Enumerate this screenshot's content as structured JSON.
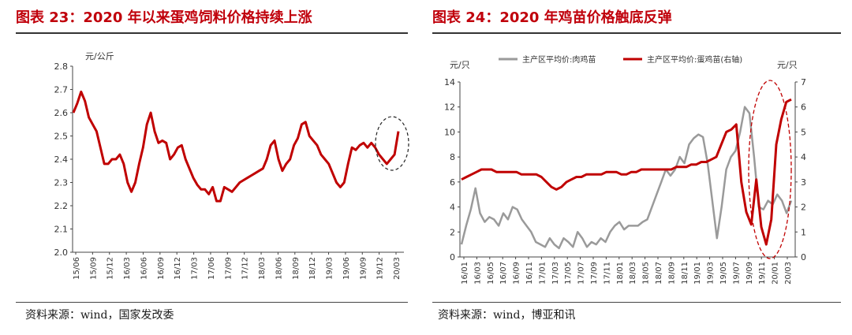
{
  "left": {
    "title": "图表 23：2020 年以来蛋鸡饲料价格持续上涨",
    "source": "资料来源：wind，国家发改委",
    "chart_data": {
      "type": "line",
      "ylabel": "元/公斤",
      "ylim": [
        2.0,
        2.8
      ],
      "yticks": [
        "2.0",
        "2.1",
        "2.2",
        "2.3",
        "2.4",
        "2.5",
        "2.6",
        "2.7",
        "2.8"
      ],
      "xticks": [
        "15/06",
        "15/09",
        "15/12",
        "16/03",
        "16/06",
        "16/09",
        "16/12",
        "17/03",
        "17/06",
        "17/09",
        "17/12",
        "18/03",
        "18/06",
        "18/09",
        "18/12",
        "19/03",
        "19/06",
        "19/09",
        "19/12",
        "20/03"
      ],
      "color": "#c00000",
      "series": [
        {
          "values": [
            2.6,
            2.64,
            2.69,
            2.65,
            2.58,
            2.55,
            2.52,
            2.45,
            2.38,
            2.38,
            2.4,
            2.4,
            2.42,
            2.38,
            2.3,
            2.26,
            2.3,
            2.38,
            2.45,
            2.55,
            2.6,
            2.52,
            2.47,
            2.48,
            2.47,
            2.4,
            2.42,
            2.45,
            2.46,
            2.4,
            2.36,
            2.32,
            2.29,
            2.27,
            2.27,
            2.25,
            2.28,
            2.22,
            2.22,
            2.28,
            2.27,
            2.26,
            2.28,
            2.3,
            2.31,
            2.32,
            2.33,
            2.34,
            2.35,
            2.36,
            2.4,
            2.46,
            2.48,
            2.4,
            2.35,
            2.38,
            2.4,
            2.46,
            2.49,
            2.55,
            2.56,
            2.5,
            2.48,
            2.46,
            2.42,
            2.4,
            2.38,
            2.34,
            2.3,
            2.28,
            2.3,
            2.38,
            2.45,
            2.44,
            2.46,
            2.47,
            2.45,
            2.47,
            2.45,
            2.42,
            2.4,
            2.38,
            2.4,
            2.42,
            2.52
          ]
        }
      ],
      "annotation": "dashed-ellipse-around-latest"
    }
  },
  "right": {
    "title": "图表 24：2020 年鸡苗价格触底反弹",
    "source": "资料来源：wind，博亚和讯",
    "chart_data": {
      "type": "line",
      "ylabel_left": "元/只",
      "ylabel_right": "元/只",
      "ylim_left": [
        0,
        14
      ],
      "ylim_right": [
        0,
        7
      ],
      "yticks_left": [
        "0",
        "2",
        "4",
        "6",
        "8",
        "10",
        "12",
        "14"
      ],
      "yticks_right": [
        "0",
        "1",
        "2",
        "3",
        "4",
        "5",
        "6",
        "7"
      ],
      "xticks": [
        "16/01",
        "16/03",
        "16/05",
        "16/07",
        "16/09",
        "16/11",
        "17/01",
        "17/03",
        "17/05",
        "17/07",
        "17/09",
        "17/11",
        "18/01",
        "18/03",
        "18/05",
        "18/07",
        "18/09",
        "18/11",
        "19/01",
        "19/03",
        "19/05",
        "19/07",
        "19/09",
        "19/11",
        "20/01",
        "20/03"
      ],
      "legend_position": "top",
      "series": [
        {
          "name": "主产区平均价:肉鸡苗",
          "axis": "left",
          "color": "#9a9a9a",
          "values": [
            1.0,
            2.5,
            3.8,
            5.5,
            3.5,
            2.8,
            3.2,
            3.0,
            2.5,
            3.5,
            3.0,
            4.0,
            3.8,
            3.0,
            2.5,
            2.0,
            1.2,
            1.0,
            0.8,
            1.5,
            1.0,
            0.7,
            1.5,
            1.2,
            0.8,
            2.0,
            1.5,
            0.8,
            1.2,
            1.0,
            1.5,
            1.2,
            2.0,
            2.5,
            2.8,
            2.2,
            2.5,
            2.5,
            2.5,
            2.8,
            3.0,
            4.0,
            5.0,
            6.0,
            7.0,
            6.5,
            7.0,
            8.0,
            7.5,
            9.0,
            9.5,
            9.8,
            9.6,
            7.5,
            4.5,
            1.5,
            4.0,
            7.0,
            8.0,
            8.5,
            10.0,
            12.0,
            11.5,
            8.0,
            4.0,
            3.8,
            4.5,
            4.2,
            5.0,
            4.5,
            3.5,
            4.5
          ]
        },
        {
          "name": "主产区平均价:蛋鸡苗(右轴)",
          "axis": "right",
          "color": "#c00000",
          "values": [
            3.1,
            3.2,
            3.3,
            3.4,
            3.5,
            3.5,
            3.5,
            3.4,
            3.4,
            3.4,
            3.4,
            3.4,
            3.3,
            3.3,
            3.3,
            3.3,
            3.2,
            3.0,
            2.8,
            2.7,
            2.8,
            3.0,
            3.1,
            3.2,
            3.2,
            3.3,
            3.3,
            3.3,
            3.3,
            3.4,
            3.4,
            3.4,
            3.3,
            3.3,
            3.4,
            3.4,
            3.5,
            3.5,
            3.5,
            3.5,
            3.5,
            3.5,
            3.5,
            3.6,
            3.6,
            3.6,
            3.7,
            3.7,
            3.8,
            3.8,
            3.9,
            4.0,
            4.5,
            5.0,
            5.1,
            5.3,
            3.0,
            1.8,
            1.3,
            3.1,
            1.2,
            0.5,
            1.5,
            4.5,
            5.5,
            6.2,
            6.3
          ]
        }
      ],
      "annotation": "dashed-ellipse-around-recent"
    }
  }
}
